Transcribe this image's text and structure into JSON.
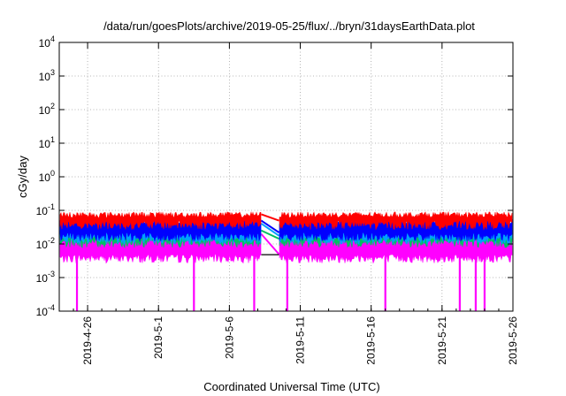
{
  "chart_data": {
    "type": "line",
    "title": "/data/run/goesPlots/archive/2019-05-25/flux/../bryn/31daysEarthData.plot",
    "xlabel": "Coordinated Universal Time (UTC)",
    "ylabel": "cGy/day",
    "yscale": "log",
    "ylim": [
      0.0001,
      10000
    ],
    "xlim": [
      "2019-04-24",
      "2019-05-26"
    ],
    "grid": true,
    "legend": "none",
    "x_ticks": [
      {
        "date": "2019-04-26",
        "label": "2019-4-26"
      },
      {
        "date": "2019-05-01",
        "label": "2019-5-1"
      },
      {
        "date": "2019-05-06",
        "label": "2019-5-6"
      },
      {
        "date": "2019-05-11",
        "label": "2019-5-11"
      },
      {
        "date": "2019-05-16",
        "label": "2019-5-16"
      },
      {
        "date": "2019-05-21",
        "label": "2019-5-21"
      },
      {
        "date": "2019-05-26",
        "label": "2019-5-26"
      }
    ],
    "y_ticks": [
      {
        "value": 0.0001,
        "base": "10",
        "exp": "-4"
      },
      {
        "value": 0.001,
        "base": "10",
        "exp": "-3"
      },
      {
        "value": 0.01,
        "base": "10",
        "exp": "-2"
      },
      {
        "value": 0.1,
        "base": "10",
        "exp": "-1"
      },
      {
        "value": 1,
        "base": "10",
        "exp": "0"
      },
      {
        "value": 10,
        "base": "10",
        "exp": "1"
      },
      {
        "value": 100,
        "base": "10",
        "exp": "2"
      },
      {
        "value": 1000,
        "base": "10",
        "exp": "3"
      },
      {
        "value": 10000,
        "base": "10",
        "exp": "4"
      }
    ],
    "data_gap": [
      "2019-05-08T06:00",
      "2019-05-09T12:00"
    ],
    "series": [
      {
        "color": "#ff0000",
        "typical_low": 0.045,
        "typical_high": 0.085,
        "dropouts": []
      },
      {
        "color": "#0000ff",
        "typical_low": 0.02,
        "typical_high": 0.055,
        "dropouts": []
      },
      {
        "color": "#00a0ff",
        "typical_low": 0.016,
        "typical_high": 0.045,
        "dropouts": []
      },
      {
        "color": "#00c060",
        "typical_low": 0.013,
        "typical_high": 0.028,
        "dropouts": []
      },
      {
        "color": "#ff00ff",
        "typical_low": 0.0045,
        "typical_high": 0.022,
        "dropouts": [
          "2019-04-25T06:00",
          "2019-05-03T12:00",
          "2019-05-07T18:00",
          "2019-05-10T02:00",
          "2019-05-17T00:00",
          "2019-05-22T06:00",
          "2019-05-23T09:00",
          "2019-05-24T00:00"
        ]
      }
    ]
  }
}
